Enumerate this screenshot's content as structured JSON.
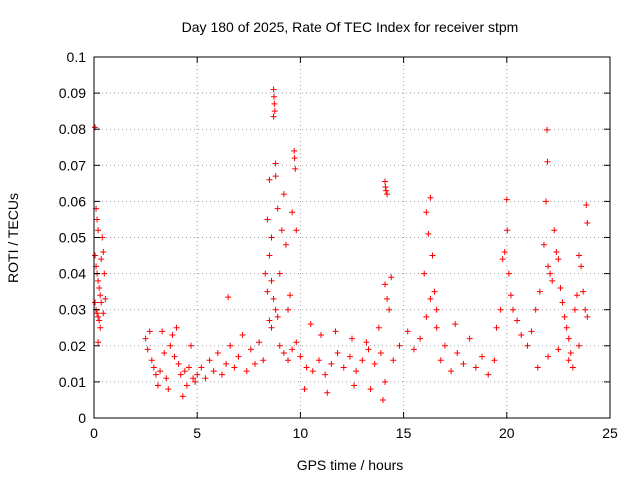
{
  "chart_data": {
    "type": "scatter",
    "title": "Day 180 of 2025, Rate Of TEC Index for receiver stpm",
    "xlabel": "GPS time / hours",
    "ylabel": "ROTI / TECUs",
    "xlim": [
      0,
      25
    ],
    "ylim": [
      0,
      0.1
    ],
    "x_ticks": [
      "0",
      "5",
      "10",
      "15",
      "20",
      "25"
    ],
    "y_ticks": [
      "0",
      "0.01",
      "0.02",
      "0.03",
      "0.04",
      "0.05",
      "0.06",
      "0.07",
      "0.08",
      "0.09",
      "0.1"
    ],
    "grid": true,
    "marker": "+",
    "color": "#ff0000",
    "points": [
      [
        0.05,
        0.0805
      ],
      [
        0.1,
        0.058
      ],
      [
        0.15,
        0.055
      ],
      [
        0.2,
        0.052
      ],
      [
        0.05,
        0.045
      ],
      [
        0.1,
        0.042
      ],
      [
        0.15,
        0.04
      ],
      [
        0.2,
        0.038
      ],
      [
        0.25,
        0.036
      ],
      [
        0.3,
        0.034
      ],
      [
        0.05,
        0.032
      ],
      [
        0.1,
        0.03
      ],
      [
        0.15,
        0.029
      ],
      [
        0.2,
        0.028
      ],
      [
        0.25,
        0.027
      ],
      [
        0.3,
        0.025
      ],
      [
        0.35,
        0.032
      ],
      [
        0.4,
        0.05
      ],
      [
        0.45,
        0.046
      ],
      [
        0.5,
        0.04
      ],
      [
        0.55,
        0.033
      ],
      [
        0.2,
        0.021
      ],
      [
        0.35,
        0.044
      ],
      [
        0.45,
        0.029
      ],
      [
        2.5,
        0.022
      ],
      [
        2.6,
        0.019
      ],
      [
        2.7,
        0.024
      ],
      [
        2.8,
        0.016
      ],
      [
        2.9,
        0.014
      ],
      [
        3.0,
        0.012
      ],
      [
        3.1,
        0.009
      ],
      [
        3.2,
        0.013
      ],
      [
        3.3,
        0.024
      ],
      [
        3.4,
        0.018
      ],
      [
        3.5,
        0.011
      ],
      [
        3.6,
        0.008
      ],
      [
        3.7,
        0.02
      ],
      [
        3.8,
        0.023
      ],
      [
        3.9,
        0.017
      ],
      [
        4.0,
        0.025
      ],
      [
        4.1,
        0.015
      ],
      [
        4.2,
        0.012
      ],
      [
        4.3,
        0.006
      ],
      [
        4.4,
        0.013
      ],
      [
        4.5,
        0.009
      ],
      [
        4.6,
        0.014
      ],
      [
        4.7,
        0.02
      ],
      [
        4.8,
        0.011
      ],
      [
        4.9,
        0.01
      ],
      [
        5.0,
        0.012
      ],
      [
        5.2,
        0.014
      ],
      [
        5.4,
        0.011
      ],
      [
        5.6,
        0.016
      ],
      [
        5.8,
        0.013
      ],
      [
        6.0,
        0.018
      ],
      [
        6.2,
        0.012
      ],
      [
        6.4,
        0.015
      ],
      [
        6.5,
        0.0335
      ],
      [
        6.6,
        0.02
      ],
      [
        6.8,
        0.014
      ],
      [
        7.0,
        0.017
      ],
      [
        7.2,
        0.023
      ],
      [
        7.4,
        0.013
      ],
      [
        7.6,
        0.019
      ],
      [
        7.8,
        0.015
      ],
      [
        8.0,
        0.021
      ],
      [
        8.2,
        0.016
      ],
      [
        8.3,
        0.04
      ],
      [
        8.4,
        0.055
      ],
      [
        8.5,
        0.066
      ],
      [
        8.6,
        0.05
      ],
      [
        8.7,
        0.091
      ],
      [
        8.72,
        0.089
      ],
      [
        8.74,
        0.087
      ],
      [
        8.76,
        0.085
      ],
      [
        8.7,
        0.0835
      ],
      [
        8.8,
        0.0705
      ],
      [
        8.8,
        0.067
      ],
      [
        8.9,
        0.058
      ],
      [
        8.5,
        0.045
      ],
      [
        8.6,
        0.038
      ],
      [
        8.7,
        0.033
      ],
      [
        8.8,
        0.03
      ],
      [
        8.9,
        0.028
      ],
      [
        8.5,
        0.027
      ],
      [
        8.6,
        0.025
      ],
      [
        8.4,
        0.035
      ],
      [
        9.0,
        0.04
      ],
      [
        9.1,
        0.052
      ],
      [
        9.2,
        0.062
      ],
      [
        9.3,
        0.048
      ],
      [
        9.4,
        0.03
      ],
      [
        9.5,
        0.034
      ],
      [
        9.6,
        0.057
      ],
      [
        9.7,
        0.074
      ],
      [
        9.72,
        0.072
      ],
      [
        9.75,
        0.069
      ],
      [
        9.8,
        0.052
      ],
      [
        9.0,
        0.02
      ],
      [
        9.2,
        0.018
      ],
      [
        9.4,
        0.016
      ],
      [
        9.6,
        0.019
      ],
      [
        9.8,
        0.021
      ],
      [
        10.0,
        0.017
      ],
      [
        10.3,
        0.014
      ],
      [
        10.6,
        0.013
      ],
      [
        10.9,
        0.016
      ],
      [
        11.2,
        0.012
      ],
      [
        11.5,
        0.015
      ],
      [
        11.8,
        0.018
      ],
      [
        12.1,
        0.014
      ],
      [
        12.4,
        0.017
      ],
      [
        12.7,
        0.013
      ],
      [
        13.0,
        0.016
      ],
      [
        13.3,
        0.019
      ],
      [
        13.6,
        0.015
      ],
      [
        13.9,
        0.018
      ],
      [
        10.5,
        0.026
      ],
      [
        11.0,
        0.023
      ],
      [
        11.7,
        0.024
      ],
      [
        12.5,
        0.022
      ],
      [
        13.2,
        0.021
      ],
      [
        13.8,
        0.025
      ],
      [
        10.2,
        0.008
      ],
      [
        11.3,
        0.007
      ],
      [
        12.6,
        0.009
      ],
      [
        13.4,
        0.008
      ],
      [
        14.1,
        0.0655
      ],
      [
        14.12,
        0.064
      ],
      [
        14.15,
        0.063
      ],
      [
        14.2,
        0.062
      ],
      [
        14.1,
        0.037
      ],
      [
        14.2,
        0.033
      ],
      [
        14.3,
        0.03
      ],
      [
        14.4,
        0.039
      ],
      [
        14.0,
        0.005
      ],
      [
        14.1,
        0.01
      ],
      [
        14.5,
        0.016
      ],
      [
        14.8,
        0.02
      ],
      [
        15.2,
        0.024
      ],
      [
        15.5,
        0.019
      ],
      [
        15.8,
        0.022
      ],
      [
        16.0,
        0.04
      ],
      [
        16.1,
        0.057
      ],
      [
        16.2,
        0.051
      ],
      [
        16.3,
        0.061
      ],
      [
        16.4,
        0.045
      ],
      [
        16.5,
        0.035
      ],
      [
        16.6,
        0.03
      ],
      [
        16.1,
        0.028
      ],
      [
        16.3,
        0.033
      ],
      [
        16.6,
        0.025
      ],
      [
        16.8,
        0.016
      ],
      [
        17.0,
        0.02
      ],
      [
        17.3,
        0.013
      ],
      [
        17.6,
        0.018
      ],
      [
        17.9,
        0.015
      ],
      [
        18.2,
        0.022
      ],
      [
        18.5,
        0.014
      ],
      [
        18.8,
        0.017
      ],
      [
        19.1,
        0.012
      ],
      [
        19.4,
        0.016
      ],
      [
        19.7,
        0.03
      ],
      [
        19.8,
        0.044
      ],
      [
        19.9,
        0.046
      ],
      [
        20.0,
        0.0605
      ],
      [
        20.02,
        0.052
      ],
      [
        20.1,
        0.04
      ],
      [
        20.2,
        0.034
      ],
      [
        20.3,
        0.03
      ],
      [
        20.5,
        0.027
      ],
      [
        20.7,
        0.023
      ],
      [
        19.5,
        0.025
      ],
      [
        17.5,
        0.026
      ],
      [
        21.0,
        0.02
      ],
      [
        21.2,
        0.024
      ],
      [
        21.4,
        0.03
      ],
      [
        21.6,
        0.035
      ],
      [
        21.8,
        0.048
      ],
      [
        21.9,
        0.06
      ],
      [
        21.95,
        0.0798
      ],
      [
        21.97,
        0.071
      ],
      [
        22.0,
        0.042
      ],
      [
        22.1,
        0.04
      ],
      [
        22.2,
        0.038
      ],
      [
        22.3,
        0.052
      ],
      [
        22.4,
        0.046
      ],
      [
        22.5,
        0.044
      ],
      [
        22.6,
        0.036
      ],
      [
        22.7,
        0.032
      ],
      [
        22.8,
        0.028
      ],
      [
        22.9,
        0.025
      ],
      [
        23.0,
        0.022
      ],
      [
        23.1,
        0.018
      ],
      [
        23.2,
        0.014
      ],
      [
        23.3,
        0.03
      ],
      [
        23.4,
        0.034
      ],
      [
        23.5,
        0.045
      ],
      [
        23.6,
        0.042
      ],
      [
        23.7,
        0.035
      ],
      [
        23.8,
        0.03
      ],
      [
        23.85,
        0.059
      ],
      [
        23.9,
        0.054
      ],
      [
        23.9,
        0.028
      ],
      [
        21.5,
        0.014
      ],
      [
        22.0,
        0.017
      ],
      [
        22.5,
        0.019
      ],
      [
        23.0,
        0.016
      ],
      [
        23.5,
        0.02
      ]
    ]
  }
}
